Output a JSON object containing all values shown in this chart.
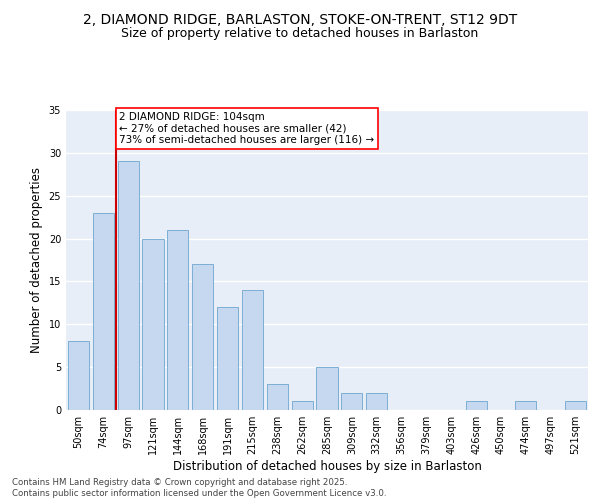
{
  "title_line1": "2, DIAMOND RIDGE, BARLASTON, STOKE-ON-TRENT, ST12 9DT",
  "title_line2": "Size of property relative to detached houses in Barlaston",
  "xlabel": "Distribution of detached houses by size in Barlaston",
  "ylabel": "Number of detached properties",
  "categories": [
    "50sqm",
    "74sqm",
    "97sqm",
    "121sqm",
    "144sqm",
    "168sqm",
    "191sqm",
    "215sqm",
    "238sqm",
    "262sqm",
    "285sqm",
    "309sqm",
    "332sqm",
    "356sqm",
    "379sqm",
    "403sqm",
    "426sqm",
    "450sqm",
    "474sqm",
    "497sqm",
    "521sqm"
  ],
  "values": [
    8,
    23,
    29,
    20,
    21,
    17,
    12,
    14,
    3,
    1,
    5,
    2,
    2,
    0,
    0,
    0,
    1,
    0,
    1,
    0,
    1
  ],
  "bar_color": "#c5d8f0",
  "bar_edgecolor": "#7bafd4",
  "red_line_x": 1.5,
  "annotation_text": "2 DIAMOND RIDGE: 104sqm\n← 27% of detached houses are smaller (42)\n73% of semi-detached houses are larger (116) →",
  "annotation_box_color": "white",
  "annotation_box_edgecolor": "red",
  "red_line_color": "#cc0000",
  "ylim": [
    0,
    35
  ],
  "yticks": [
    0,
    5,
    10,
    15,
    20,
    25,
    30,
    35
  ],
  "background_color": "#e8eef8",
  "grid_color": "#ffffff",
  "footer_text": "Contains HM Land Registry data © Crown copyright and database right 2025.\nContains public sector information licensed under the Open Government Licence v3.0.",
  "title_fontsize": 10,
  "subtitle_fontsize": 9,
  "axis_label_fontsize": 8.5,
  "tick_fontsize": 7,
  "annotation_fontsize": 7.5
}
